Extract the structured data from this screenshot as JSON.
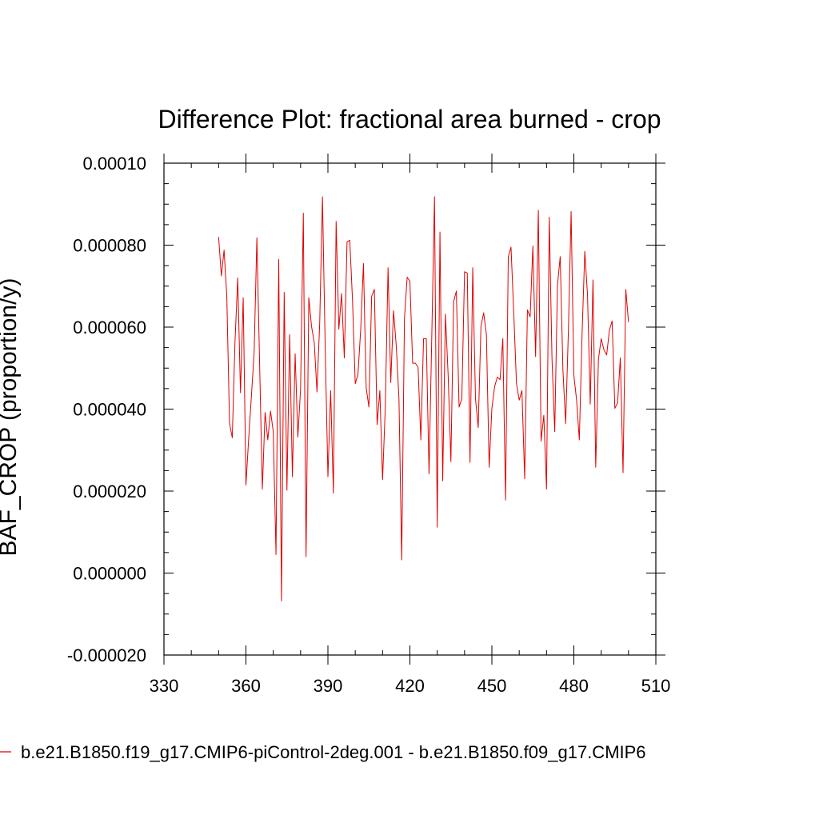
{
  "chart_data": {
    "type": "line",
    "title": "Difference Plot: fractional area burned - crop",
    "xlabel": "",
    "ylabel": "BAF_CROP  (proportion/y)",
    "xlim": [
      330,
      510
    ],
    "ylim": [
      -2e-05,
      0.0001
    ],
    "xticks": [
      330,
      360,
      390,
      420,
      450,
      480,
      510
    ],
    "xtick_labels": [
      "330",
      "360",
      "390",
      "420",
      "450",
      "480",
      "510"
    ],
    "yticks": [
      -2e-05,
      0,
      2e-05,
      4e-05,
      6e-05,
      8e-05,
      0.0001
    ],
    "ytick_labels": [
      "-0.000020",
      "0.000000",
      "0.000020",
      "0.000040",
      "0.000060",
      "0.000080",
      "0.00010"
    ],
    "grid": false,
    "legend_position": "bottom",
    "series": [
      {
        "name": "b.e21.B1850.f19_g17.CMIP6-piControl-2deg.001 - b.e21.B1850.f09_g17.CMIP6",
        "color": "#e00000",
        "x_start": 350,
        "x_step": 1,
        "values": [
          8.2e-05,
          7.25e-05,
          7.88e-05,
          6.75e-05,
          3.65e-05,
          3.3e-05,
          5.65e-05,
          7.2e-05,
          4.4e-05,
          6.72e-05,
          2.15e-05,
          3.28e-05,
          4.32e-05,
          5.38e-05,
          8.18e-05,
          5.12e-05,
          2.05e-05,
          3.92e-05,
          3.25e-05,
          3.95e-05,
          3.45e-05,
          4.5e-06,
          7.65e-05,
          -6.8e-06,
          6.85e-05,
          2.02e-05,
          5.82e-05,
          2.35e-05,
          5.35e-05,
          3.32e-05,
          4.5e-05,
          8.78e-05,
          4e-06,
          6.72e-05,
          6.02e-05,
          5.62e-05,
          4.42e-05,
          6.12e-05,
          9.18e-05,
          5.52e-05,
          2.35e-05,
          4.45e-05,
          1.95e-05,
          8.58e-05,
          5.95e-05,
          6.82e-05,
          5.25e-05,
          8.08e-05,
          8.12e-05,
          6.65e-05,
          4.62e-05,
          4.85e-05,
          5.95e-05,
          7.55e-05,
          4.52e-05,
          4.05e-05,
          6.75e-05,
          6.92e-05,
          3.62e-05,
          4.45e-05,
          2.28e-05,
          4.05e-05,
          7.45e-05,
          4.65e-05,
          6.4e-05,
          5.55e-05,
          4.25e-05,
          3.2e-06,
          6.2e-05,
          7.22e-05,
          7.12e-05,
          5.12e-05,
          5.12e-05,
          5.02e-05,
          3.25e-05,
          5.72e-05,
          5.72e-05,
          2.42e-05,
          5.75e-05,
          9.18e-05,
          1.12e-05,
          8.32e-05,
          2.25e-05,
          6.32e-05,
          4.82e-05,
          2.72e-05,
          6.62e-05,
          6.88e-05,
          4.05e-05,
          4.25e-05,
          7.35e-05,
          7.32e-05,
          2.7e-05,
          7.45e-05,
          4.25e-05,
          3.55e-05,
          6.02e-05,
          6.35e-05,
          5.82e-05,
          2.58e-05,
          4.02e-05,
          4.55e-05,
          4.78e-05,
          4.72e-05,
          5.72e-05,
          1.78e-05,
          7.72e-05,
          7.95e-05,
          6.35e-05,
          4.62e-05,
          4.22e-05,
          4.45e-05,
          2.3e-05,
          6.42e-05,
          6.25e-05,
          7.98e-05,
          5.28e-05,
          8.85e-05,
          3.22e-05,
          3.85e-05,
          2.05e-05,
          8.68e-05,
          5.22e-05,
          3.45e-05,
          7.02e-05,
          7.72e-05,
          4.95e-05,
          3.65e-05,
          5.92e-05,
          8.82e-05,
          4.82e-05,
          4.22e-05,
          3.25e-05,
          5.82e-05,
          7.85e-05,
          6.78e-05,
          4.12e-05,
          7.15e-05,
          2.58e-05,
          5.22e-05,
          5.72e-05,
          5.45e-05,
          5.32e-05,
          5.92e-05,
          6.15e-05,
          4.02e-05,
          4.15e-05,
          5.25e-05,
          2.45e-05,
          6.92e-05,
          6.12e-05
        ]
      }
    ]
  }
}
